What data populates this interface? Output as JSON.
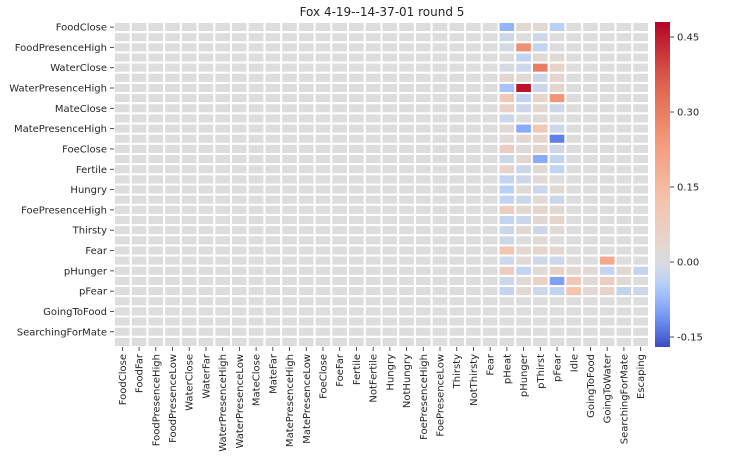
{
  "chart_data": {
    "type": "heatmap",
    "title": "Fox 4-19--14-37-01 round 5",
    "colormap": "coolwarm",
    "vmin": -0.17,
    "vmax": 0.48,
    "row_labels_shown": [
      "FoodClose",
      "FoodPresenceHigh",
      "WaterClose",
      "WaterPresenceHigh",
      "MateClose",
      "MatePresenceHigh",
      "FoeClose",
      "Fertile",
      "Hungry",
      "FoePresenceHigh",
      "Thirsty",
      "Fear",
      "pHunger",
      "pFear",
      "GoingToFood",
      "SearchingForMate"
    ],
    "columns": [
      "FoodClose",
      "FoodFar",
      "FoodPresenceHigh",
      "FoodPresenceLow",
      "WaterClose",
      "WaterFar",
      "WaterPresenceHigh",
      "WaterPresenceLow",
      "MateClose",
      "MateFar",
      "MatePresenceHigh",
      "MatePresenceLow",
      "FoeClose",
      "FoeFar",
      "Fertile",
      "NotFertile",
      "Hungry",
      "NotHungry",
      "FoePresenceHigh",
      "FoePresenceLow",
      "Thirsty",
      "NotThirsty",
      "Fear",
      "pHeat",
      "pHunger",
      "pThirst",
      "pFear",
      "Idle",
      "GoingToFood",
      "GoingToWater",
      "SearchingForMate",
      "Escaping"
    ],
    "n_rows": 32,
    "nonzero_cells": [
      {
        "row": 0,
        "col": 23,
        "value": -0.08
      },
      {
        "row": 0,
        "col": 24,
        "value": 0.03
      },
      {
        "row": 0,
        "col": 25,
        "value": 0.03
      },
      {
        "row": 0,
        "col": 26,
        "value": -0.04
      },
      {
        "row": 1,
        "col": 23,
        "value": -0.02
      },
      {
        "row": 1,
        "col": 25,
        "value": -0.02
      },
      {
        "row": 2,
        "col": 23,
        "value": -0.01
      },
      {
        "row": 2,
        "col": 24,
        "value": 0.26
      },
      {
        "row": 2,
        "col": 25,
        "value": -0.03
      },
      {
        "row": 3,
        "col": 24,
        "value": -0.03
      },
      {
        "row": 3,
        "col": 25,
        "value": 0.02
      },
      {
        "row": 3,
        "col": 26,
        "value": 0.02
      },
      {
        "row": 4,
        "col": 23,
        "value": -0.01
      },
      {
        "row": 4,
        "col": 24,
        "value": -0.02
      },
      {
        "row": 4,
        "col": 25,
        "value": 0.3
      },
      {
        "row": 4,
        "col": 26,
        "value": 0.05
      },
      {
        "row": 5,
        "col": 23,
        "value": 0.03
      },
      {
        "row": 5,
        "col": 24,
        "value": 0.02
      },
      {
        "row": 5,
        "col": 25,
        "value": -0.02
      },
      {
        "row": 5,
        "col": 26,
        "value": 0.04
      },
      {
        "row": 6,
        "col": 23,
        "value": -0.06
      },
      {
        "row": 6,
        "col": 24,
        "value": 0.46
      },
      {
        "row": 6,
        "col": 25,
        "value": -0.02
      },
      {
        "row": 6,
        "col": 26,
        "value": 0.04
      },
      {
        "row": 7,
        "col": 23,
        "value": 0.1
      },
      {
        "row": 7,
        "col": 24,
        "value": -0.03
      },
      {
        "row": 7,
        "col": 25,
        "value": 0.04
      },
      {
        "row": 7,
        "col": 26,
        "value": 0.25
      },
      {
        "row": 8,
        "col": 23,
        "value": 0.06
      },
      {
        "row": 8,
        "col": 24,
        "value": -0.02
      },
      {
        "row": 8,
        "col": 25,
        "value": 0.03
      },
      {
        "row": 8,
        "col": 26,
        "value": -0.02
      },
      {
        "row": 9,
        "col": 23,
        "value": -0.02
      },
      {
        "row": 9,
        "col": 25,
        "value": 0.02
      },
      {
        "row": 10,
        "col": 23,
        "value": 0.02
      },
      {
        "row": 10,
        "col": 24,
        "value": -0.09
      },
      {
        "row": 10,
        "col": 25,
        "value": 0.1
      },
      {
        "row": 10,
        "col": 26,
        "value": -0.02
      },
      {
        "row": 11,
        "col": 23,
        "value": 0.02
      },
      {
        "row": 11,
        "col": 24,
        "value": 0.03
      },
      {
        "row": 11,
        "col": 25,
        "value": 0.04
      },
      {
        "row": 11,
        "col": 26,
        "value": -0.13
      },
      {
        "row": 12,
        "col": 23,
        "value": 0.07
      },
      {
        "row": 12,
        "col": 24,
        "value": 0.02
      },
      {
        "row": 12,
        "col": 25,
        "value": 0.04
      },
      {
        "row": 12,
        "col": 26,
        "value": -0.02
      },
      {
        "row": 13,
        "col": 23,
        "value": -0.02
      },
      {
        "row": 13,
        "col": 24,
        "value": 0.03
      },
      {
        "row": 13,
        "col": 25,
        "value": -0.09
      },
      {
        "row": 13,
        "col": 26,
        "value": -0.03
      },
      {
        "row": 14,
        "col": 23,
        "value": 0.05
      },
      {
        "row": 14,
        "col": 24,
        "value": -0.02
      },
      {
        "row": 14,
        "col": 25,
        "value": 0.02
      },
      {
        "row": 14,
        "col": 26,
        "value": -0.03
      },
      {
        "row": 15,
        "col": 23,
        "value": -0.03
      },
      {
        "row": 15,
        "col": 24,
        "value": -0.02
      },
      {
        "row": 15,
        "col": 25,
        "value": 0.02
      },
      {
        "row": 16,
        "col": 23,
        "value": -0.04
      },
      {
        "row": 16,
        "col": 24,
        "value": 0.02
      },
      {
        "row": 16,
        "col": 25,
        "value": -0.02
      },
      {
        "row": 16,
        "col": 26,
        "value": 0.02
      },
      {
        "row": 17,
        "col": 23,
        "value": -0.03
      },
      {
        "row": 17,
        "col": 24,
        "value": -0.02
      },
      {
        "row": 17,
        "col": 25,
        "value": 0.02
      },
      {
        "row": 17,
        "col": 26,
        "value": -0.02
      },
      {
        "row": 18,
        "col": 23,
        "value": 0.07
      },
      {
        "row": 18,
        "col": 24,
        "value": 0.03
      },
      {
        "row": 18,
        "col": 25,
        "value": 0.04
      },
      {
        "row": 18,
        "col": 26,
        "value": 0.03
      },
      {
        "row": 19,
        "col": 23,
        "value": -0.03
      },
      {
        "row": 19,
        "col": 24,
        "value": -0.02
      },
      {
        "row": 19,
        "col": 25,
        "value": 0.03
      },
      {
        "row": 19,
        "col": 26,
        "value": 0.04
      },
      {
        "row": 20,
        "col": 23,
        "value": -0.02
      },
      {
        "row": 20,
        "col": 24,
        "value": 0.03
      },
      {
        "row": 20,
        "col": 25,
        "value": -0.02
      },
      {
        "row": 20,
        "col": 26,
        "value": 0.02
      },
      {
        "row": 21,
        "col": 23,
        "value": -0.02
      },
      {
        "row": 21,
        "col": 25,
        "value": 0.02
      },
      {
        "row": 22,
        "col": 23,
        "value": 0.11
      },
      {
        "row": 22,
        "col": 24,
        "value": 0.03
      },
      {
        "row": 22,
        "col": 25,
        "value": 0.04
      },
      {
        "row": 22,
        "col": 26,
        "value": 0.03
      },
      {
        "row": 23,
        "col": 23,
        "value": -0.02
      },
      {
        "row": 23,
        "col": 24,
        "value": 0.02
      },
      {
        "row": 23,
        "col": 25,
        "value": -0.02
      },
      {
        "row": 23,
        "col": 26,
        "value": -0.02
      },
      {
        "row": 23,
        "col": 29,
        "value": 0.2
      },
      {
        "row": 24,
        "col": 23,
        "value": 0.07
      },
      {
        "row": 24,
        "col": 24,
        "value": -0.03
      },
      {
        "row": 24,
        "col": 25,
        "value": 0.02
      },
      {
        "row": 24,
        "col": 26,
        "value": 0.05
      },
      {
        "row": 24,
        "col": 27,
        "value": 0.02
      },
      {
        "row": 24,
        "col": 28,
        "value": 0.02
      },
      {
        "row": 24,
        "col": 29,
        "value": -0.03
      },
      {
        "row": 24,
        "col": 30,
        "value": 0.03
      },
      {
        "row": 24,
        "col": 31,
        "value": -0.03
      },
      {
        "row": 25,
        "col": 23,
        "value": -0.02
      },
      {
        "row": 25,
        "col": 24,
        "value": 0.02
      },
      {
        "row": 25,
        "col": 25,
        "value": 0.06
      },
      {
        "row": 25,
        "col": 26,
        "value": -0.1
      },
      {
        "row": 25,
        "col": 27,
        "value": 0.1
      },
      {
        "row": 25,
        "col": 28,
        "value": 0.02
      },
      {
        "row": 25,
        "col": 29,
        "value": 0.07
      },
      {
        "row": 25,
        "col": 30,
        "value": 0.02
      },
      {
        "row": 26,
        "col": 23,
        "value": -0.03
      },
      {
        "row": 26,
        "col": 24,
        "value": 0.02
      },
      {
        "row": 26,
        "col": 25,
        "value": -0.02
      },
      {
        "row": 26,
        "col": 26,
        "value": -0.03
      },
      {
        "row": 26,
        "col": 27,
        "value": 0.12
      },
      {
        "row": 26,
        "col": 28,
        "value": 0.02
      },
      {
        "row": 26,
        "col": 29,
        "value": 0.05
      },
      {
        "row": 26,
        "col": 30,
        "value": -0.03
      },
      {
        "row": 26,
        "col": 31,
        "value": -0.02
      }
    ],
    "colorbar_ticks": [
      "0.45",
      "0.30",
      "0.15",
      "0.00",
      "-0.15"
    ],
    "colorbar_tick_values": [
      0.45,
      0.3,
      0.15,
      0.0,
      -0.15
    ]
  }
}
